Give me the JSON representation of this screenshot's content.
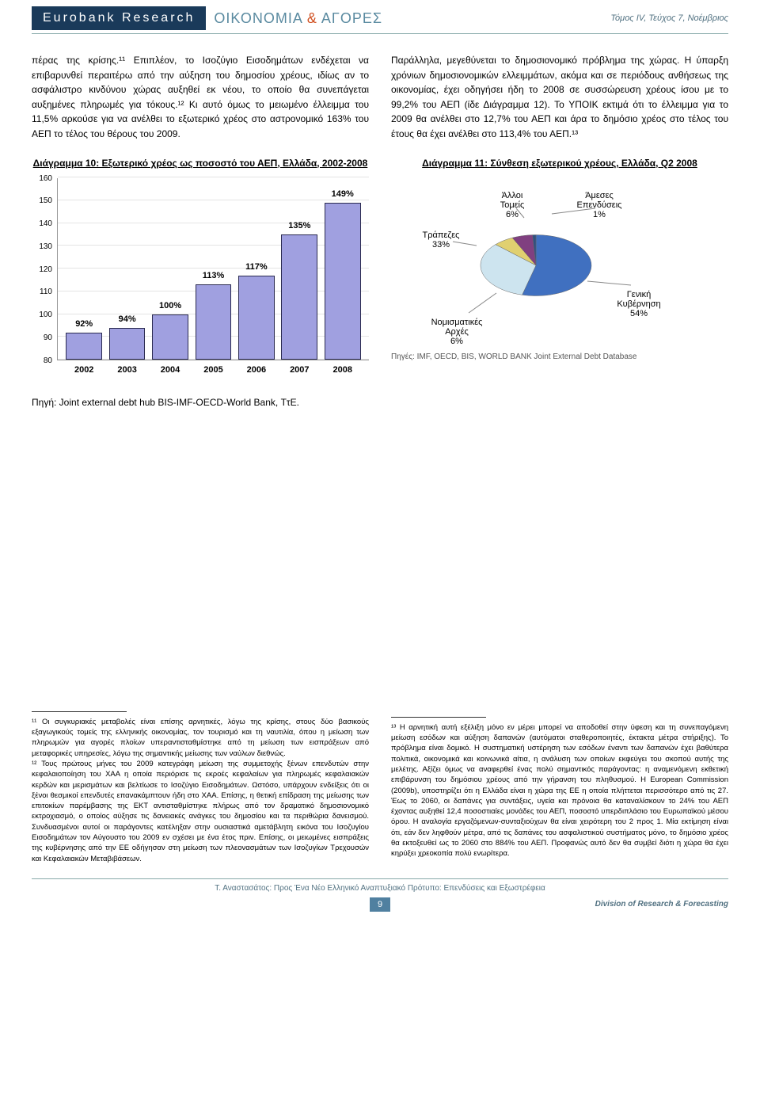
{
  "header": {
    "brand_left": "Eurobank Research",
    "brand_mid_a": "ΟΙΚΟΝΟΜΙΑ ",
    "brand_amp": "& ",
    "brand_mid_b": "ΑΓΟΡΕΣ",
    "issue": "Τόμος IV, Τεύχος 7, Νοέμβριος"
  },
  "body": {
    "left_para": "πέρας της κρίσης.¹¹ Επιπλέον, το Ισοζύγιο Εισοδημάτων ενδέχεται να επιβαρυνθεί περαιτέρω από την αύξηση του δημοσίου χρέους, ιδίως αν το ασφάλιστρο κινδύνου χώρας αυξηθεί εκ νέου, το οποίο θα συνεπάγεται αυξημένες πληρωμές για τόκους.¹² Κι αυτό όμως το μειωμένο έλλειμμα του 11,5% αρκούσε για να ανέλθει το εξωτερικό χρέος στο αστρονομικό 163% του ΑΕΠ το τέλος του θέρους του 2009.",
    "right_para": "Παράλληλα, μεγεθύνεται το δημοσιονομικό πρόβλημα της χώρας. Η ύπαρξη χρόνιων δημοσιονομικών ελλειμμάτων, ακόμα και σε περιόδους ανθήσεως της οικονομίας, έχει οδηγήσει ήδη το 2008 σε συσσώρευση χρέους ίσου με το 99,2% του ΑΕΠ (ίδε Διάγραμμα 12). Το ΥΠΟΙΚ εκτιμά ότι το έλλειμμα για το 2009 θα ανέλθει στο 12,7% του ΑΕΠ και άρα το δημόσιο χρέος στο τέλος του έτους θα έχει ανέλθει στο 113,4% του ΑΕΠ.¹³"
  },
  "chart10": {
    "title": "Διάγραμμα 10: Εξωτερικό χρέος ως ποσοστό του ΑΕΠ, Ελλάδα, 2002-2008",
    "type": "bar",
    "categories": [
      "2002",
      "2003",
      "2004",
      "2005",
      "2006",
      "2007",
      "2008"
    ],
    "values": [
      92,
      94,
      100,
      113,
      117,
      135,
      149
    ],
    "value_labels": [
      "92%",
      "94%",
      "100%",
      "113%",
      "117%",
      "135%",
      "149%"
    ],
    "ylim": [
      80,
      160
    ],
    "ytick_step": 10,
    "yticks": [
      80,
      90,
      100,
      110,
      120,
      130,
      140,
      150,
      160
    ],
    "bar_color": "#a0a0e0",
    "bar_border": "#2a2a50",
    "grid_color": "#e5e5e5",
    "background": "#ffffff",
    "source": "Πηγή: Joint external debt hub BIS-IMF-OECD-World Bank, ΤτΕ."
  },
  "chart11": {
    "title": "Διάγραμμα 11: Σύνθεση εξωτερικού χρέους, Ελλάδα, Q2 2008",
    "type": "pie",
    "slices": [
      {
        "label": "Γενική Κυβέρνηση",
        "pct": 54,
        "color": "#4070c0"
      },
      {
        "label": "Τράπεζες",
        "pct": 33,
        "color": "#cde4ef"
      },
      {
        "label": "Νομισματικές Αρχές",
        "pct": 6,
        "color": "#e0d070"
      },
      {
        "label": "Άλλοι Τομείς",
        "pct": 6,
        "color": "#804080"
      },
      {
        "label": "Άμεσες Επενδύσεις",
        "pct": 1,
        "color": "#305080"
      }
    ],
    "label_banks": "Τράπεζες\n33%",
    "label_other": "Άλλοι\nΤομείς\n6%",
    "label_fdi": "Άμεσες\nΕπενδύσεις\n1%",
    "label_gov": "Γενική\nΚυβέρνηση\n54%",
    "label_mon": "Νομισματικές\nΑρχές\n6%",
    "source": "Πηγές: IMF, OECD, BIS, WORLD BANK Joint External Debt Database"
  },
  "footnotes": {
    "fn11": "¹¹ Οι συγκυριακές μεταβολές είναι επίσης αρνητικές, λόγω της κρίσης, στους δύο βασικούς εξαγωγικούς τομείς της ελληνικής οικονομίας, τον τουρισμό και τη ναυτιλία, όπου η μείωση των πληρωμών για αγορές πλοίων υπεραντισταθμίστηκε από τη μείωση των εισπράξεων από μεταφορικές υπηρεσίες, λόγω της σημαντικής μείωσης των ναύλων διεθνώς.",
    "fn12": "¹² Τους πρώτους μήνες του 2009 κατεγράφη μείωση της συμμετοχής ξένων επενδυτών στην κεφαλαιοποίηση του ΧΑΑ η οποία περιόρισε τις εκροές κεφαλαίων για πληρωμές κεφαλαιακών κερδών και μερισμάτων και βελτίωσε το Ισοζύγιο Εισοδημάτων. Ωστόσο, υπάρχουν ενδείξεις ότι οι ξένοι θεσμικοί επενδυτές επανακάμπτουν ήδη στο ΧΑΑ. Επίσης, η θετική επίδραση της μείωσης των επιτοκίων παρέμβασης της ΕΚΤ αντισταθμίστηκε πλήρως από τον δραματικό δημοσιονομικό εκτροχιασμό, ο οποίος αύξησε τις δανειακές ανάγκες του δημοσίου και τα περιθώρια δανεισμού. Συνδυασμένοι αυτοί οι παράγοντες κατέληξαν στην ουσιαστικά αμετάβλητη εικόνα του Ισοζυγίου Εισοδημάτων τον Αύγουστο του 2009 εν σχέσει με ένα έτος πριν. Επίσης, οι μειωμένες εισπράξεις της κυβέρνησης από την ΕΕ οδήγησαν στη μείωση των πλεονασμάτων των Ισοζυγίων Τρεχουσών και Κεφαλαιακών Μεταβιβάσεων.",
    "fn13": "¹³ Η αρνητική αυτή εξέλιξη μόνο εν μέρει μπορεί να αποδοθεί στην ύφεση και τη συνεπαγόμενη μείωση εσόδων και αύξηση δαπανών (αυτόματοι σταθεροποιητές, έκτακτα μέτρα στήριξης). Το πρόβλημα είναι δομικό. Η συστηματική υστέρηση των εσόδων έναντι των δαπανών έχει βαθύτερα πολιτικά, οικονομικά και κοινωνικά αίτια, η ανάλυση των οποίων εκφεύγει του σκοπού αυτής της μελέτης. Αξίζει όμως να αναφερθεί ένας πολύ σημαντικός παράγοντας: η αναμενόμενη εκθετική επιβάρυνση του δημόσιου χρέους από την γήρανση του πληθυσμού. Η European Commission (2009b), υποστηρίζει ότι η Ελλάδα είναι η χώρα της ΕΕ η οποία πλήττεται περισσότερο από τις 27. Έως το 2060, οι δαπάνες για συντάξεις, υγεία και πρόνοια θα καταναλίσκουν το 24% του ΑΕΠ έχοντας αυξηθεί 12,4 ποσοστιαίες μονάδες του ΑΕΠ, ποσοστό υπερδιπλάσιο του Ευρωπαϊκού μέσου όρου. Η αναλογία εργαζόμενων-συνταξιούχων θα είναι χειρότερη του 2 προς 1. Μία εκτίμηση είναι ότι, εάν δεν ληφθούν μέτρα, από τις δαπάνες του ασφαλιστικού συστήματος μόνο, το δημόσιο χρέος θα εκτοξευθεί ως το 2060 στο 884% του ΑΕΠ. Προφανώς αυτό δεν θα συμβεί διότι η χώρα θα έχει κηρύξει χρεοκοπία πολύ ενωρίτερα."
  },
  "footer": {
    "citation": "Τ. Αναστασάτος: Προς Ένα Νέο Ελληνικό Αναπτυξιακό Πρότυπο: Επενδύσεις και Εξωστρέφεια",
    "page": "9",
    "division": "Division of Research & Forecasting"
  }
}
